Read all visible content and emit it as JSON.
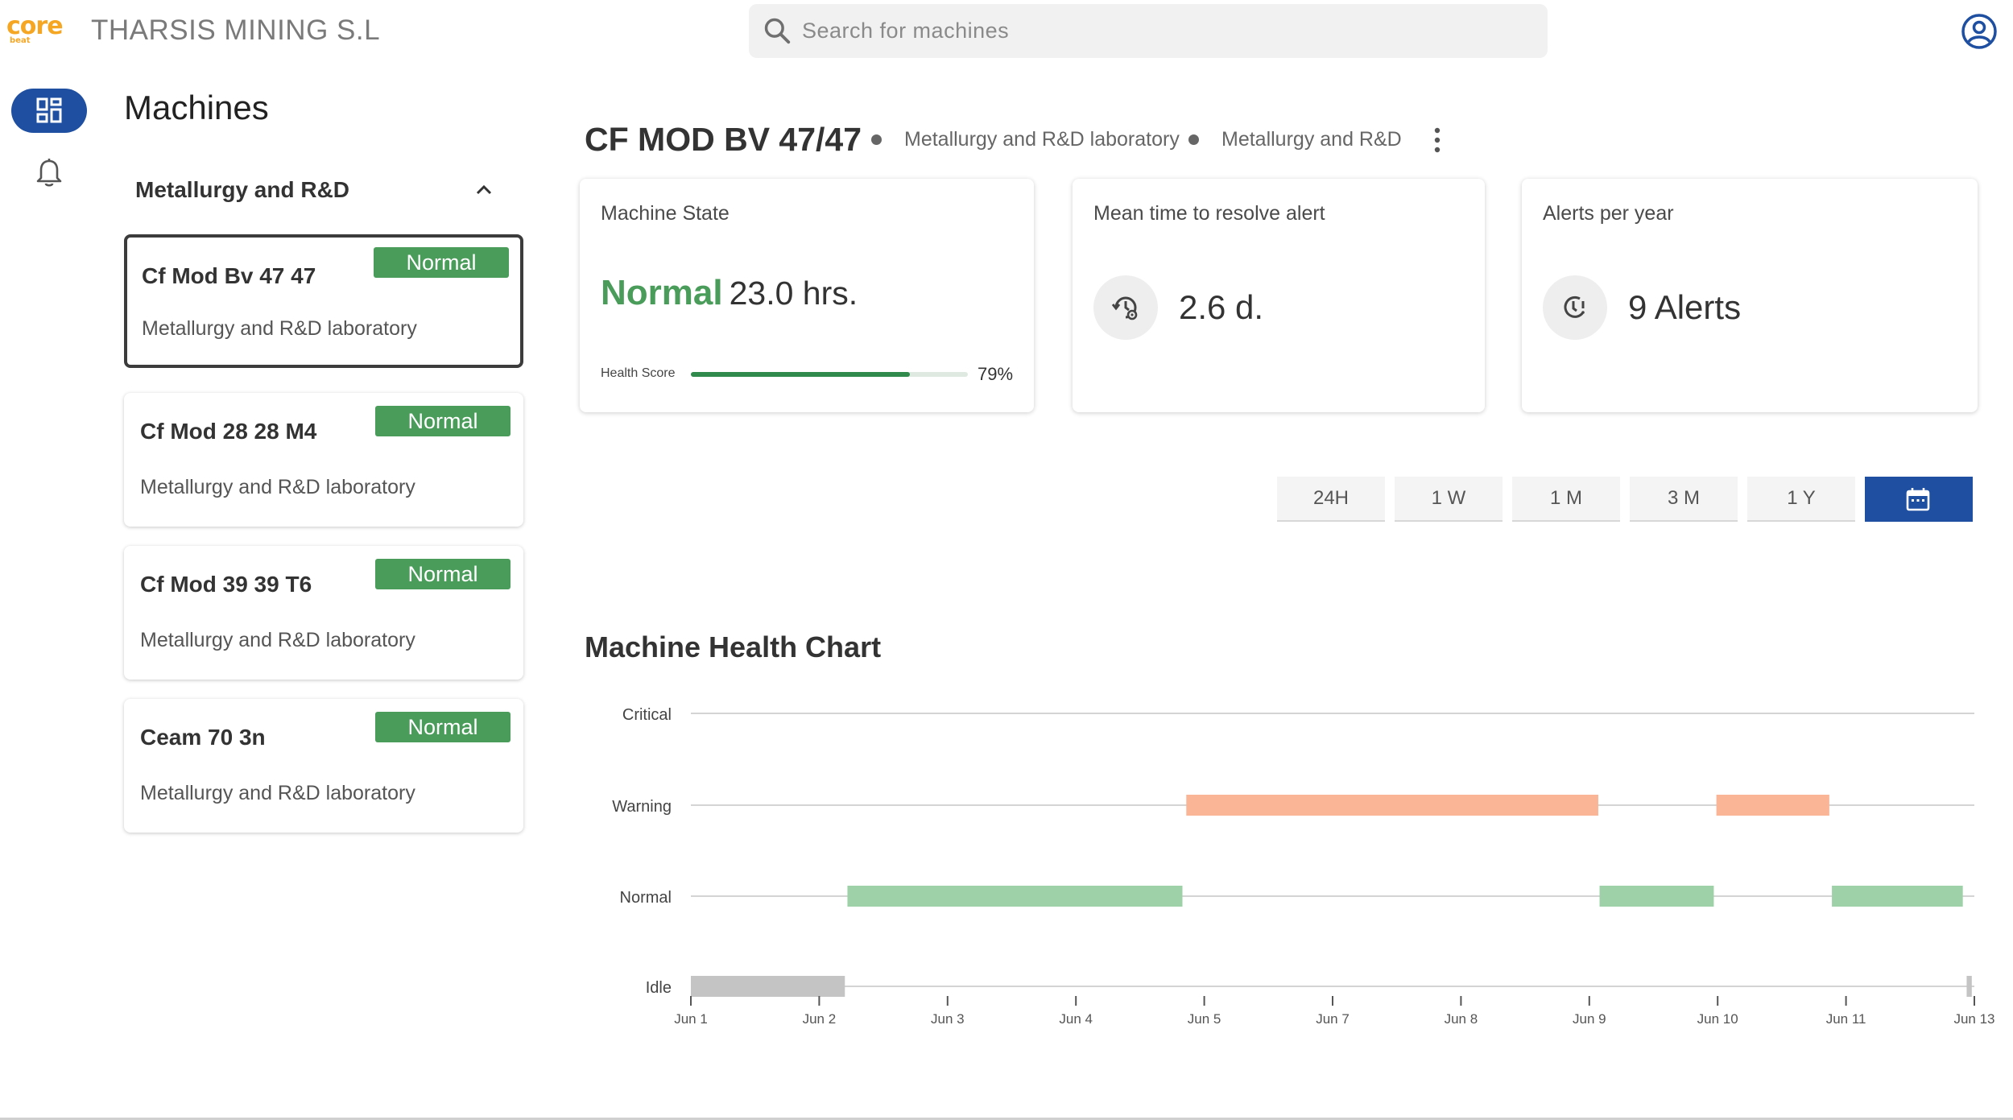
{
  "app": {
    "logo_main": "core",
    "logo_sub": "beat",
    "company": "THARSIS MINING S.L"
  },
  "search": {
    "placeholder": "Search for machines",
    "icon": "search-icon"
  },
  "rail": {
    "items": [
      {
        "name": "dashboard",
        "icon": "dashboard-icon",
        "active": true
      },
      {
        "name": "alerts",
        "icon": "bell-icon",
        "active": false
      }
    ]
  },
  "machines_panel": {
    "title": "Machines",
    "group": {
      "label": "Metallurgy and R&D",
      "expanded": true
    },
    "cards": [
      {
        "name": "Cf Mod Bv 47 47",
        "status": "Normal",
        "location": "Metallurgy and R&D laboratory",
        "selected": true
      },
      {
        "name": "Cf Mod 28 28 M4",
        "status": "Normal",
        "location": "Metallurgy and R&D laboratory",
        "selected": false
      },
      {
        "name": "Cf Mod 39 39 T6",
        "status": "Normal",
        "location": "Metallurgy and R&D laboratory",
        "selected": false
      },
      {
        "name": "Ceam 70 3n",
        "status": "Normal",
        "location": "Metallurgy and R&D laboratory",
        "selected": false
      }
    ]
  },
  "machine": {
    "title": "CF MOD BV 47/47",
    "crumb1": "Metallurgy and R&D laboratory",
    "crumb2": "Metallurgy and R&D"
  },
  "stats": {
    "state": {
      "label": "Machine State",
      "value": "Normal",
      "duration": "23.0 hrs.",
      "health_label": "Health Score",
      "health_pct": 79,
      "health_text": "79%"
    },
    "mttr": {
      "label": "Mean time to resolve alert",
      "value": "2.6 d.",
      "icon": "clock-settings-icon"
    },
    "alerts": {
      "label": "Alerts per year",
      "value": "9 Alerts",
      "icon": "alert-clock-icon"
    }
  },
  "ranges": {
    "options": [
      "24H",
      "1 W",
      "1 M",
      "3 M",
      "1 Y"
    ],
    "calendar_icon": "calendar-icon",
    "active": "calendar"
  },
  "colors": {
    "primary": "#1e4fa0",
    "normal": "#4a9c5a",
    "normal_bar": "#9fd1a8",
    "warning_bar": "#f9b595",
    "idle_bar": "#c4c4c4",
    "accent_logo": "#f5a623"
  },
  "chart_data": {
    "type": "timeline",
    "title": "Machine Health Chart",
    "states": [
      "Critical",
      "Warning",
      "Normal",
      "Idle"
    ],
    "x_ticks": [
      "Jun 1",
      "Jun 2",
      "Jun 3",
      "Jun 4",
      "Jun 5",
      "Jun 7",
      "Jun 8",
      "Jun 9",
      "Jun 10",
      "Jun 11",
      "Jun 13"
    ],
    "segments": [
      {
        "state": "Idle",
        "start": 0.0,
        "end": 1.2
      },
      {
        "state": "Normal",
        "start": 1.22,
        "end": 3.83
      },
      {
        "state": "Warning",
        "start": 3.86,
        "end": 7.07
      },
      {
        "state": "Normal",
        "start": 7.08,
        "end": 7.97
      },
      {
        "state": "Warning",
        "start": 7.99,
        "end": 8.87
      },
      {
        "state": "Normal",
        "start": 8.89,
        "end": 9.91
      },
      {
        "state": "Idle",
        "start": 9.94,
        "end": 9.98
      }
    ],
    "x_range": [
      0,
      10
    ]
  }
}
